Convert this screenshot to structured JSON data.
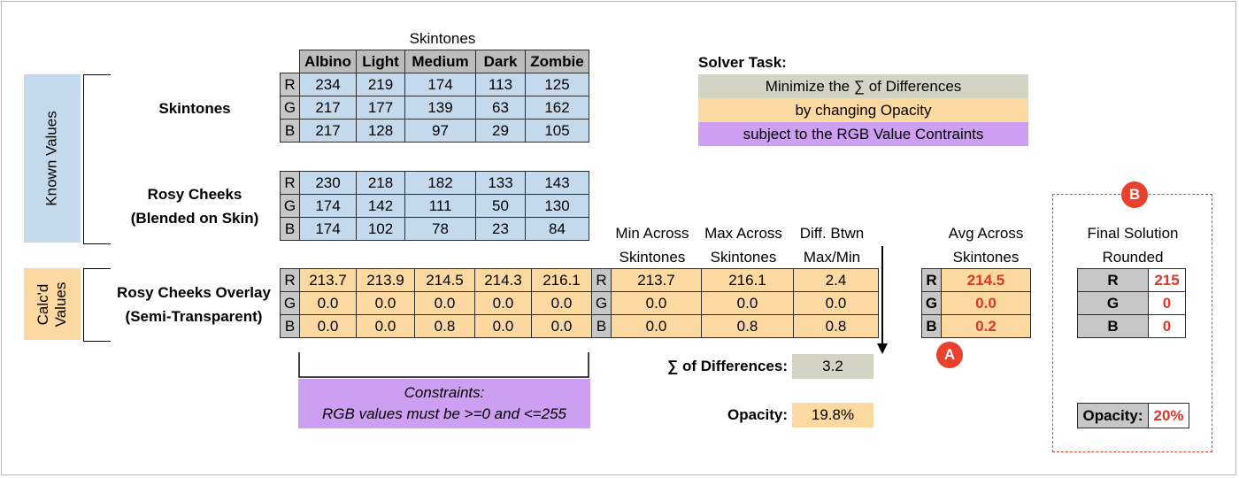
{
  "side": {
    "known": "Known Values",
    "calcd": "Calc'd Values"
  },
  "skintones_header": "Skintones",
  "skintones": [
    "Albino",
    "Light",
    "Medium",
    "Dark",
    "Zombie"
  ],
  "labels": {
    "skintones": "Skintones",
    "rosy1": "Rosy Cheeks",
    "rosy2": "(Blended on Skin)",
    "overlay1": "Rosy Cheeks Overlay",
    "overlay2": "(Semi-Transparent)"
  },
  "rgb_labels": [
    "R",
    "G",
    "B"
  ],
  "skin_values": [
    [
      "234",
      "219",
      "174",
      "113",
      "125"
    ],
    [
      "217",
      "177",
      "139",
      "63",
      "162"
    ],
    [
      "217",
      "128",
      "97",
      "29",
      "105"
    ]
  ],
  "rosy_values": [
    [
      "230",
      "218",
      "182",
      "133",
      "143"
    ],
    [
      "174",
      "142",
      "111",
      "50",
      "130"
    ],
    [
      "174",
      "102",
      "78",
      "23",
      "84"
    ]
  ],
  "overlay_values": [
    [
      "213.7",
      "213.9",
      "214.5",
      "214.3",
      "216.1"
    ],
    [
      "0.0",
      "0.0",
      "0.0",
      "0.0",
      "0.0"
    ],
    [
      "0.0",
      "0.0",
      "0.8",
      "0.0",
      "0.0"
    ]
  ],
  "stats_headers": {
    "min": [
      "Min Across",
      "Skintones"
    ],
    "max": [
      "Max Across",
      "Skintones"
    ],
    "diff": [
      "Diff. Btwn",
      "Max/Min"
    ],
    "avg": [
      "Avg Across",
      "Skintones"
    ]
  },
  "stats_values": [
    [
      "213.7",
      "216.1",
      "2.4"
    ],
    [
      "0.0",
      "0.0",
      "0.0"
    ],
    [
      "0.0",
      "0.8",
      "0.8"
    ]
  ],
  "avg_values": [
    "214.5",
    "0.0",
    "0.2"
  ],
  "sum_diff": {
    "label": "∑ of Differences:",
    "value": "3.2"
  },
  "opacity": {
    "label": "Opacity:",
    "value": "19.8%"
  },
  "constraints": {
    "line1": "Constraints:",
    "line2": "RGB values must be >=0 and <=255"
  },
  "solver": {
    "title": "Solver Task:",
    "line1": "Minimize the ∑ of Differences",
    "line2": "by changing Opacity",
    "line3": "subject to the RGB Value Contraints"
  },
  "final": {
    "title1": "Final Solution",
    "title2": "Rounded",
    "values": [
      "215",
      "0",
      "0"
    ],
    "opacity_label": "Opacity:",
    "opacity_value": "20%"
  },
  "markers": {
    "a": "A",
    "b": "B"
  },
  "colors": {
    "blue": "#c4d9ec",
    "orange": "#fbd9a1",
    "gray": "#c7c7c7",
    "khaki": "#d4d4c4",
    "purple": "#cc9ff2",
    "red": "#e03527"
  }
}
